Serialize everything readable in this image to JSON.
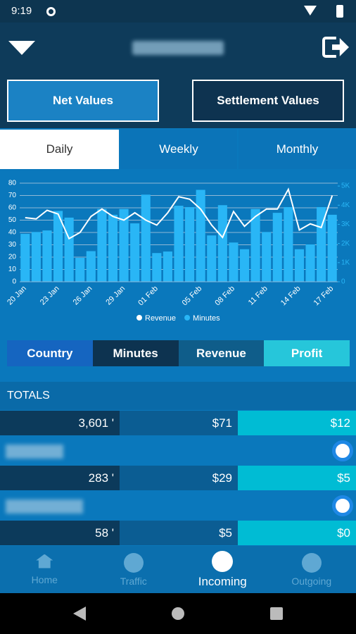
{
  "status": {
    "time": "9:19"
  },
  "buttons": [
    "Net Values",
    "Settlement Values"
  ],
  "tabs": [
    "Daily",
    "Weekly",
    "Monthly"
  ],
  "chart_data": {
    "type": "bar-line",
    "categories": [
      "20 Jan",
      null,
      null,
      "23 Jan",
      null,
      null,
      "26 Jan",
      null,
      null,
      "29 Jan",
      null,
      null,
      "01 Feb",
      null,
      null,
      null,
      "05 Feb",
      null,
      null,
      "08 Feb",
      null,
      null,
      "11 Feb",
      null,
      null,
      "14 Feb",
      null,
      null,
      "17 Feb"
    ],
    "series": [
      {
        "name": "Revenue",
        "color": "#ffffff",
        "values": [
          52,
          51,
          58,
          55,
          35,
          40,
          53,
          59,
          53,
          50,
          56,
          50,
          46,
          56,
          69,
          67,
          59,
          46,
          36,
          57,
          45,
          53,
          59,
          59,
          75,
          42,
          47,
          44,
          70
        ]
      },
      {
        "name": "Minutes",
        "color": "#29b6f6",
        "axis": "y2",
        "values": [
          2500,
          2600,
          2680,
          3700,
          3350,
          1250,
          1600,
          3800,
          3500,
          3800,
          3050,
          4550,
          1500,
          1580,
          3970,
          3900,
          4800,
          2420,
          4000,
          2050,
          1700,
          3800,
          2600,
          3600,
          3900,
          1700,
          1950,
          3900,
          3500
        ]
      }
    ],
    "ylim": [
      0,
      80
    ],
    "yticks": [
      0,
      10,
      20,
      30,
      40,
      50,
      60,
      70,
      80
    ],
    "y2lim": [
      0,
      5150
    ],
    "y2ticks": [
      0,
      {
        "value": 1000,
        "label": "1K"
      },
      {
        "value": 2000,
        "label": "2K"
      },
      {
        "value": 3000,
        "label": "3K"
      },
      {
        "value": 4000,
        "label": "4K"
      },
      {
        "value": 5000,
        "label": "5K"
      }
    ],
    "grid": true
  },
  "columns": [
    "Country",
    "Minutes",
    "Revenue",
    "Profit"
  ],
  "table": {
    "header": "TOTALS",
    "rows": [
      [
        "3,601 '",
        "$71",
        "$12"
      ],
      [
        "283 '",
        "$29",
        "$5"
      ],
      [
        "58 '",
        "$5",
        "$0"
      ]
    ]
  },
  "nav": [
    "Home",
    "Traffic",
    "Incoming",
    "Outgoing"
  ]
}
